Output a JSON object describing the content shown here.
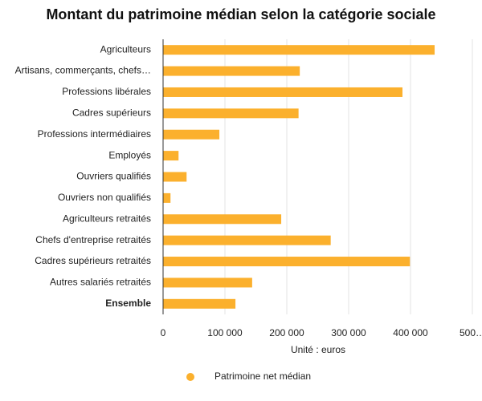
{
  "chart_data": {
    "type": "hbar",
    "title": "Montant du patrimoine médian selon la catégorie sociale",
    "x_label": "Unité : euros",
    "categories": [
      "Agriculteurs",
      "Artisans, commerçants, chefs…",
      "Professions libérales",
      "Cadres supérieurs",
      "Professions intermédiaires",
      "Employés",
      "Ouvriers qualifiés",
      "Ouvriers non qualifiés",
      "Agriculteurs retraités",
      "Chefs d'entreprise retraités",
      "Cadres supérieurs retraités",
      "Autres salariés retraités",
      "Ensemble"
    ],
    "series": [
      {
        "name": "Patrimoine net médian",
        "color": "#fbb02d",
        "values": [
          439000,
          221000,
          387000,
          219000,
          91000,
          25000,
          38000,
          12000,
          191000,
          271000,
          399000,
          144000,
          117000
        ]
      }
    ],
    "xlim": [
      0,
      500000
    ],
    "xticks": [
      0,
      {
        "value": 100000,
        "label": "100 000"
      },
      {
        "value": 200000,
        "label": "200 000"
      },
      {
        "value": 300000,
        "label": "300 000"
      },
      {
        "value": 400000,
        "label": "400 000"
      },
      {
        "value": 500000,
        "label": "500…"
      }
    ],
    "grid": true
  }
}
